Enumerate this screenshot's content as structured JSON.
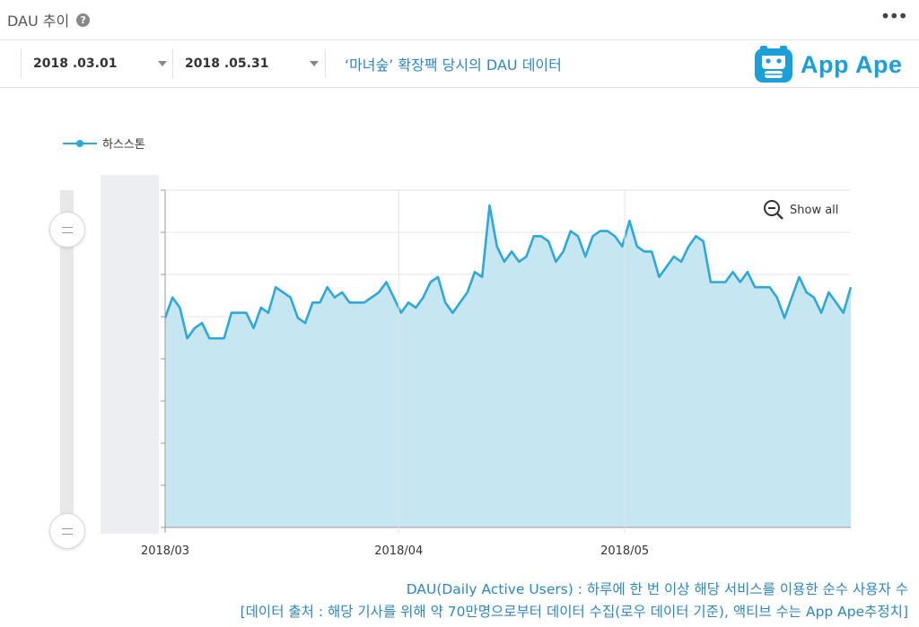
{
  "header": {
    "title": "DAU 추이",
    "help_icon": "?",
    "more_icon": "•••"
  },
  "toolbar": {
    "start_date": "2018 .03.01",
    "end_date": "2018 .05.31",
    "caption": "‘마녀숲’ 확장팩 당시의 DAU 데이터"
  },
  "logo": {
    "text": "App Ape",
    "color": "#1a9fd8"
  },
  "show_all": "Show all",
  "colors": {
    "line": "#2da8d8",
    "fill": "#c6e6f1",
    "accent": "#2e86c1"
  },
  "chart_data": {
    "type": "area",
    "series": [
      {
        "name": "하스스톤",
        "values": [
          41,
          45,
          43,
          37,
          39,
          40,
          37,
          37,
          37,
          42,
          42,
          42,
          39,
          43,
          42,
          47,
          46,
          45,
          41,
          40,
          44,
          44,
          47,
          45,
          46,
          44,
          44,
          44,
          45,
          46,
          48,
          45,
          42,
          44,
          43,
          45,
          48,
          49,
          44,
          42,
          44,
          46,
          50,
          49,
          63,
          55,
          52,
          54,
          52,
          53,
          57,
          57,
          56,
          52,
          54,
          58,
          57,
          53,
          57,
          58,
          58,
          57,
          55,
          60,
          55,
          54,
          54,
          49,
          51,
          53,
          52,
          55,
          57,
          56,
          48,
          48,
          48,
          50,
          48,
          50,
          47,
          47,
          47,
          45,
          41,
          45,
          49,
          46,
          45,
          42,
          46,
          44,
          42,
          47
        ]
      }
    ],
    "x_start": "2018/03/01",
    "x_end": "2018/05/31",
    "x_ticks": [
      "2018/03",
      "2018/04",
      "2018/05"
    ],
    "grid": true,
    "legend_position": "top-left"
  },
  "footer": {
    "line1": "DAU(Daily Active Users) : 하루에 한 번 이상 해당 서비스를 이용한 순수 사용자 수",
    "line2": "[데이터 출처 : 해당 기사를 위해 약 70만명으로부터 데이터 수집(로우 데이터 기준), 액티브 수는 App Ape추정치]"
  }
}
